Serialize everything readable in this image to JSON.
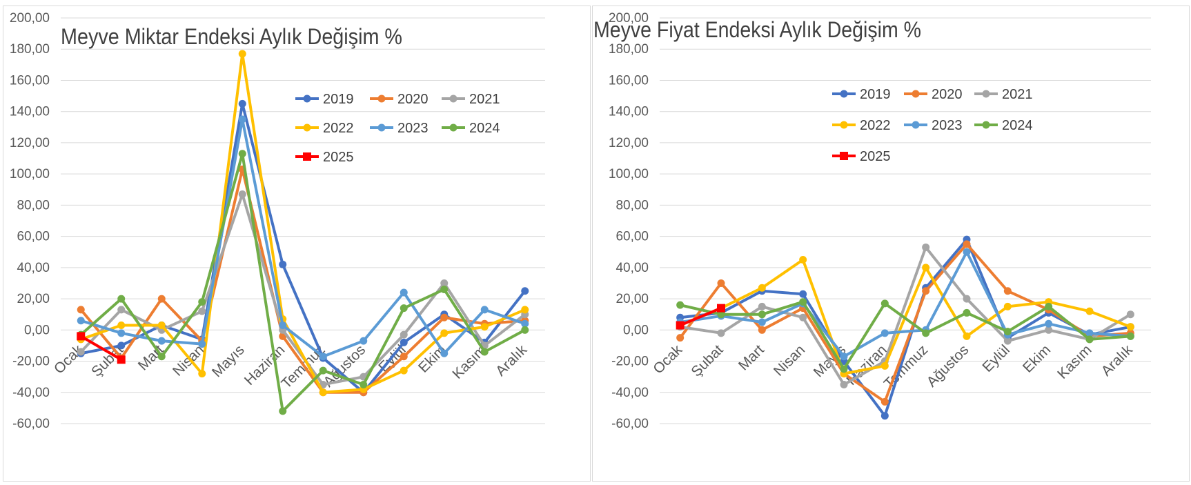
{
  "chart_data": [
    {
      "type": "line",
      "title": "Meyve Miktar Endeksi Aylık Değişim %",
      "xlabel": "",
      "ylabel": "",
      "ylim": [
        -60,
        200
      ],
      "yticks": [
        "200,00",
        "180,00",
        "160,00",
        "140,00",
        "120,00",
        "100,00",
        "80,00",
        "60,00",
        "40,00",
        "20,00",
        "0,00",
        "-20,00",
        "-40,00",
        "-60,00"
      ],
      "categories": [
        "Ocak",
        "Şubat",
        "Mart",
        "Nisan",
        "Mayıs",
        "Haziran",
        "Temmuz",
        "Ağustos",
        "Eylül",
        "Ekim",
        "Kasım",
        "Aralık"
      ],
      "legend_position": "top-right",
      "series": [
        {
          "name": "2019",
          "color": "#4472c4",
          "values": [
            -15,
            -10,
            3,
            -6,
            145,
            42,
            -18,
            -40,
            -8,
            10,
            -8,
            25
          ]
        },
        {
          "name": "2020",
          "color": "#ed7d31",
          "values": [
            13,
            -18,
            20,
            -7,
            103,
            -4,
            -40,
            -40,
            -17,
            8,
            4,
            6
          ]
        },
        {
          "name": "2021",
          "color": "#a5a5a5",
          "values": [
            -14,
            13,
            0,
            12,
            87,
            0,
            -35,
            -30,
            -3,
            30,
            -10,
            10
          ]
        },
        {
          "name": "2022",
          "color": "#ffc000",
          "values": [
            -6,
            3,
            3,
            -28,
            177,
            7,
            -40,
            -38,
            -26,
            -2,
            2,
            13
          ]
        },
        {
          "name": "2023",
          "color": "#5b9bd5",
          "values": [
            6,
            -2,
            -7,
            -9,
            135,
            3,
            -17,
            -7,
            24,
            -15,
            13,
            4
          ]
        },
        {
          "name": "2024",
          "color": "#70ad47",
          "values": [
            -3,
            20,
            -17,
            18,
            113,
            -52,
            -26,
            -35,
            14,
            26,
            -14,
            0
          ]
        },
        {
          "name": "2025",
          "color": "#ff0000",
          "marker": "square",
          "values": [
            -4,
            -19,
            null,
            null,
            null,
            null,
            null,
            null,
            null,
            null,
            null,
            null
          ]
        }
      ]
    },
    {
      "type": "line",
      "title": "Meyve Fiyat Endeksi Aylık Değişim %",
      "xlabel": "",
      "ylabel": "",
      "ylim": [
        -60,
        200
      ],
      "yticks": [
        "200,00",
        "180,00",
        "160,00",
        "140,00",
        "120,00",
        "100,00",
        "80,00",
        "60,00",
        "40,00",
        "20,00",
        "0,00",
        "-20,00",
        "-40,00",
        "-60,00"
      ],
      "categories": [
        "Ocak",
        "Şubat",
        "Mart",
        "Nisan",
        "Mayıs",
        "Haziran",
        "Temmuz",
        "Ağustos",
        "Eylül",
        "Ekim",
        "Kasım",
        "Aralık"
      ],
      "legend_position": "top-right",
      "series": [
        {
          "name": "2019",
          "color": "#4472c4",
          "values": [
            8,
            11,
            25,
            23,
            -20,
            -55,
            27,
            58,
            -5,
            11,
            -3,
            2
          ]
        },
        {
          "name": "2020",
          "color": "#ed7d31",
          "values": [
            -5,
            30,
            0,
            14,
            -28,
            -46,
            25,
            55,
            25,
            13,
            -4,
            -2
          ]
        },
        {
          "name": "2021",
          "color": "#a5a5a5",
          "values": [
            2,
            -2,
            15,
            8,
            -35,
            -20,
            53,
            20,
            -7,
            0,
            -6,
            10
          ]
        },
        {
          "name": "2022",
          "color": "#ffc000",
          "values": [
            3,
            14,
            27,
            45,
            -28,
            -23,
            40,
            -4,
            15,
            18,
            12,
            2
          ]
        },
        {
          "name": "2023",
          "color": "#5b9bd5",
          "values": [
            5,
            9,
            5,
            17,
            -17,
            -2,
            0,
            50,
            -3,
            4,
            -2,
            -4
          ]
        },
        {
          "name": "2024",
          "color": "#70ad47",
          "values": [
            16,
            10,
            10,
            18,
            -25,
            17,
            -2,
            11,
            -1,
            15,
            -6,
            -4
          ]
        },
        {
          "name": "2025",
          "color": "#ff0000",
          "marker": "square",
          "values": [
            3,
            14,
            null,
            null,
            null,
            null,
            null,
            null,
            null,
            null,
            null,
            null
          ]
        }
      ]
    }
  ]
}
